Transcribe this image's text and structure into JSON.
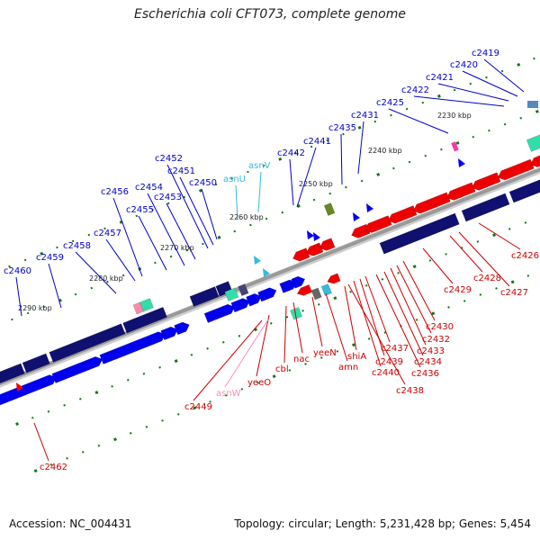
{
  "title": "Escherichia coli CFT073, complete genome",
  "footer": {
    "accession": "Accession: NC_004431",
    "summary": "Topology: circular; Length: 5,231,428 bp; Genes: 5,454"
  },
  "colors": {
    "forward_gene": "#0000ee",
    "reverse_gene": "#ee0000",
    "cds_dark": "#101070",
    "trna": "#33bbdd",
    "rrna_like": "#33ddaa",
    "misc": "#ff88aa",
    "backbone": "#999999",
    "tick": "#117711",
    "upper_label": "#0000cc",
    "lower_label": "#cc0000"
  },
  "scale_labels": [
    "2230 kbp",
    "2240 kbp",
    "2250 kbp",
    "2260 kbp",
    "2270 kbp",
    "2280 kbp",
    "2290 kbp"
  ],
  "upper_labels": [
    {
      "text": "c2419",
      "color": "#0000cc"
    },
    {
      "text": "c2420",
      "color": "#0000cc"
    },
    {
      "text": "c2421",
      "color": "#0000cc"
    },
    {
      "text": "c2422",
      "color": "#0000cc"
    },
    {
      "text": "c2425",
      "color": "#0000cc"
    },
    {
      "text": "c2431",
      "color": "#0000cc"
    },
    {
      "text": "c2435",
      "color": "#0000cc"
    },
    {
      "text": "c2441",
      "color": "#0000cc"
    },
    {
      "text": "c2442",
      "color": "#0000cc"
    },
    {
      "text": "asnV",
      "color": "#33bbdd"
    },
    {
      "text": "asnU",
      "color": "#33bbdd"
    },
    {
      "text": "c2450",
      "color": "#0000cc"
    },
    {
      "text": "c2451",
      "color": "#0000cc"
    },
    {
      "text": "c2452",
      "color": "#0000cc"
    },
    {
      "text": "c2453",
      "color": "#0000cc"
    },
    {
      "text": "c2454",
      "color": "#0000cc"
    },
    {
      "text": "c2455",
      "color": "#0000cc"
    },
    {
      "text": "c2456",
      "color": "#0000cc"
    },
    {
      "text": "c2457",
      "color": "#0000cc"
    },
    {
      "text": "c2458",
      "color": "#0000cc"
    },
    {
      "text": "c2459",
      "color": "#0000cc"
    },
    {
      "text": "c2460",
      "color": "#0000cc"
    }
  ],
  "lower_labels": [
    {
      "text": "c2426",
      "color": "#cc0000"
    },
    {
      "text": "c2427",
      "color": "#cc0000"
    },
    {
      "text": "c2428",
      "color": "#cc0000"
    },
    {
      "text": "c2429",
      "color": "#cc0000"
    },
    {
      "text": "c2430",
      "color": "#cc0000"
    },
    {
      "text": "c2432",
      "color": "#cc0000"
    },
    {
      "text": "c2433",
      "color": "#cc0000"
    },
    {
      "text": "c2434",
      "color": "#cc0000"
    },
    {
      "text": "c2436",
      "color": "#cc0000"
    },
    {
      "text": "c2437",
      "color": "#cc0000"
    },
    {
      "text": "c2439",
      "color": "#cc0000"
    },
    {
      "text": "c2440",
      "color": "#cc0000"
    },
    {
      "text": "c2438",
      "color": "#cc0000"
    },
    {
      "text": "shiA",
      "color": "#cc0000"
    },
    {
      "text": "amn",
      "color": "#cc0000"
    },
    {
      "text": "yeeN",
      "color": "#cc0000"
    },
    {
      "text": "nac",
      "color": "#cc0000"
    },
    {
      "text": "cbl",
      "color": "#cc0000"
    },
    {
      "text": "yeeO",
      "color": "#cc0000"
    },
    {
      "text": "asnW",
      "color": "#ff88bb"
    },
    {
      "text": "c2449",
      "color": "#cc0000"
    },
    {
      "text": "c2462",
      "color": "#cc0000"
    }
  ]
}
